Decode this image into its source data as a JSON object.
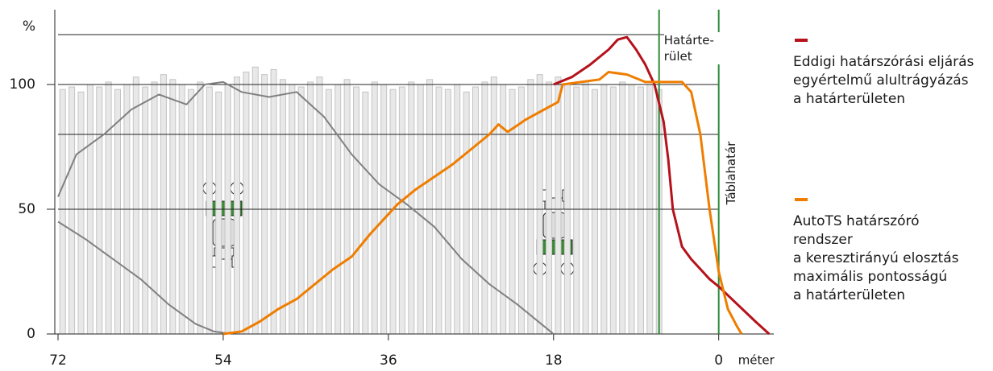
{
  "chart_data": {
    "type": "line",
    "y_label": "%",
    "x_label": "méter",
    "xlim": [
      72,
      -6
    ],
    "ylim": [
      0,
      130
    ],
    "xticks": [
      72,
      54,
      36,
      18,
      0
    ],
    "yticks": [
      0,
      50,
      100
    ],
    "hlines": [
      50,
      80,
      100,
      120
    ],
    "bars": {
      "color": "#c4c4c4",
      "x": [
        71.5,
        70.5,
        69.5,
        68.5,
        67.5,
        66.5,
        65.5,
        64.5,
        63.5,
        62.5,
        61.5,
        60.5,
        59.5,
        58.5,
        57.5,
        56.5,
        55.5,
        54.5,
        53.5,
        52.5,
        51.5,
        50.5,
        49.5,
        48.5,
        47.5,
        46.5,
        45.5,
        44.5,
        43.5,
        42.5,
        41.5,
        40.5,
        39.5,
        38.5,
        37.5,
        36.5,
        35.5,
        34.5,
        33.5,
        32.5,
        31.5,
        30.5,
        29.5,
        28.5,
        27.5,
        26.5,
        25.5,
        24.5,
        23.5,
        22.5,
        21.5,
        20.5,
        19.5,
        18.5,
        17.5,
        16.5,
        15.5,
        14.5,
        13.5,
        12.5,
        11.5,
        10.5,
        9.5,
        8.5,
        7.5,
        6.5
      ],
      "values": [
        98,
        99,
        97,
        100,
        99,
        101,
        98,
        100,
        103,
        99,
        101,
        104,
        102,
        100,
        98,
        101,
        99,
        97,
        100,
        103,
        105,
        107,
        104,
        106,
        102,
        100,
        99,
        101,
        103,
        98,
        100,
        102,
        99,
        97,
        101,
        100,
        98,
        99,
        101,
        100,
        102,
        99,
        98,
        100,
        97,
        99,
        101,
        103,
        100,
        98,
        99,
        102,
        104,
        101,
        103,
        100,
        99,
        101,
        98,
        100,
        99,
        101,
        100,
        99,
        100,
        98
      ]
    },
    "passes": [
      {
        "color": "#808080",
        "x": [
          72,
          70,
          67,
          64,
          61,
          58,
          56,
          54,
          52,
          49,
          46,
          43,
          40,
          37,
          34,
          31,
          28,
          25,
          22,
          19,
          18
        ],
        "values": [
          55,
          72,
          80,
          90,
          96,
          92,
          100,
          101,
          97,
          95,
          97,
          87,
          72,
          60,
          52,
          43,
          30,
          20,
          12,
          3,
          0
        ]
      },
      {
        "color": "#808080",
        "x": [
          72,
          69,
          66,
          63,
          60,
          57,
          55,
          53
        ],
        "values": [
          45,
          38,
          30,
          22,
          12,
          4,
          1,
          0
        ]
      }
    ],
    "series": [
      {
        "name": "Eddigi határszórási eljárás\negyértelmű alultrágyázás\na határterületen",
        "color": "#b5121b",
        "x": [
          18,
          16,
          14,
          12,
          11,
          10,
          9,
          8,
          7,
          6,
          5.5,
          5,
          4,
          3,
          2,
          1,
          0,
          -2,
          -4,
          -5.5
        ],
        "values": [
          100,
          103,
          108,
          114,
          118,
          119,
          114,
          108,
          100,
          85,
          70,
          50,
          35,
          30,
          26,
          22,
          19,
          12,
          5,
          0
        ]
      },
      {
        "name": "AutoTS határszóró\nrendszer\na keresztirányú elosztás\nmaximális pontosságú\na határterületen",
        "color": "#ef7d00",
        "x": [
          54,
          52,
          50,
          48,
          46,
          44,
          42,
          40,
          38,
          36,
          35,
          33,
          31,
          29,
          27,
          25,
          24,
          23,
          21,
          19,
          17.5,
          17,
          15,
          13,
          12,
          10,
          8,
          6,
          4,
          3,
          2,
          1,
          0,
          -1,
          -2,
          -2.5
        ],
        "values": [
          0,
          1,
          5,
          10,
          14,
          20,
          26,
          31,
          40,
          48,
          52,
          58,
          63,
          68,
          74,
          80,
          84,
          81,
          86,
          90,
          93,
          100,
          101,
          102,
          105,
          104,
          101,
          101,
          101,
          97,
          80,
          50,
          25,
          10,
          3,
          0
        ]
      }
    ],
    "boundaries": [
      {
        "x": 6.5,
        "label": "Határte-\nrület",
        "color": "#2e8b3a"
      },
      {
        "x": 0,
        "label": "Táblahatár",
        "color": "#2e8b3a"
      }
    ]
  }
}
